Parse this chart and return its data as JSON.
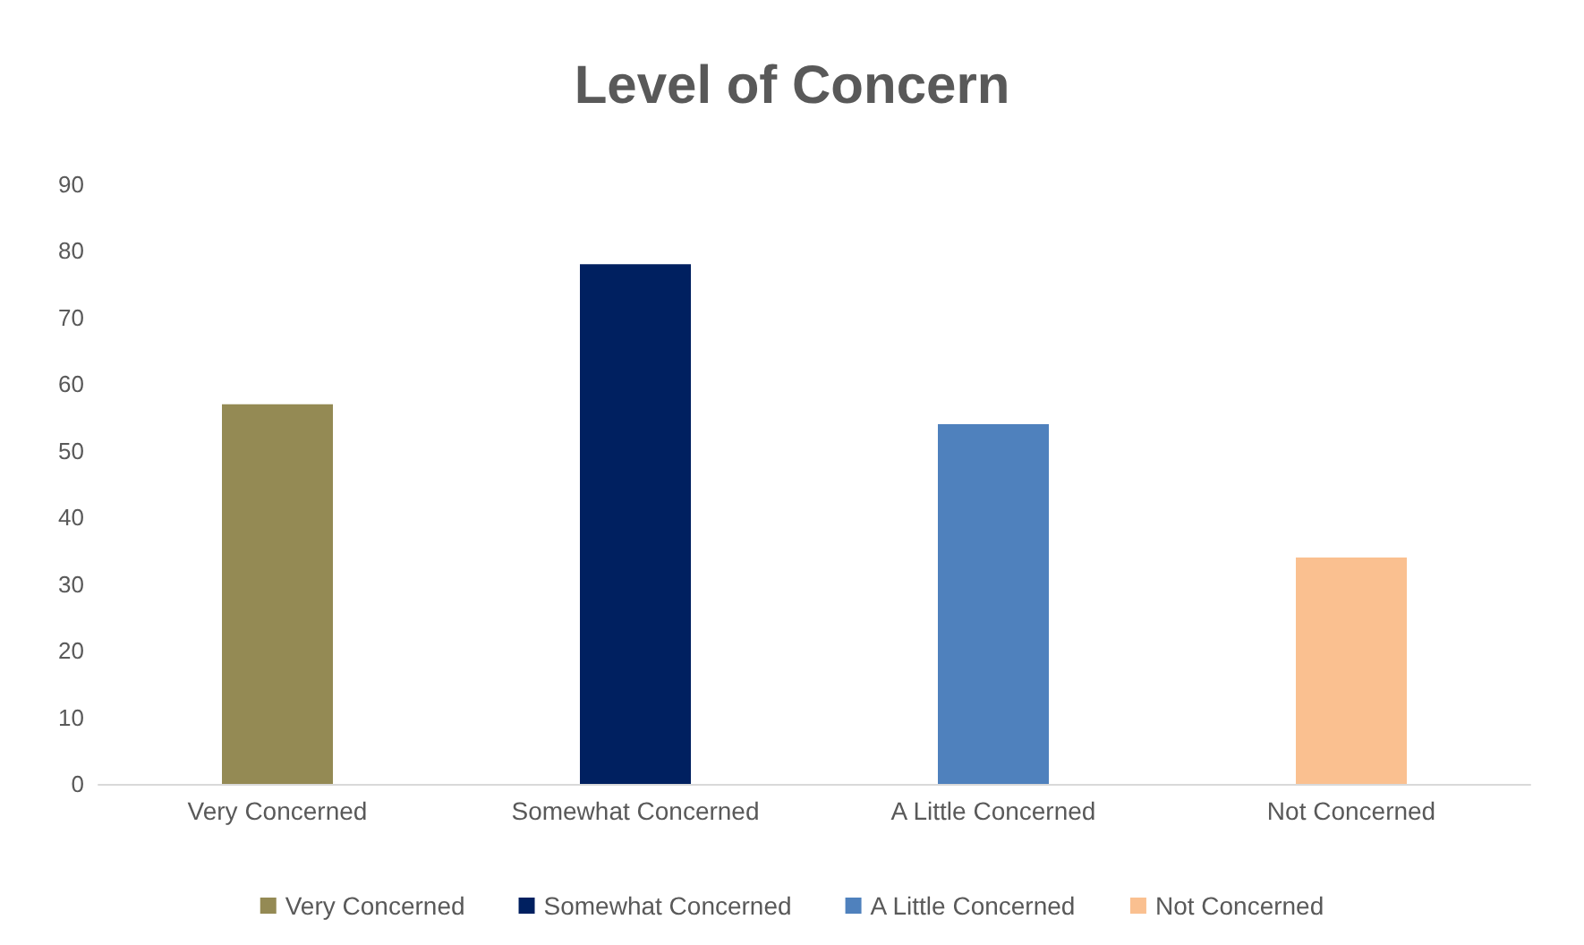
{
  "chart_data": {
    "type": "bar",
    "title": "Level of Concern",
    "categories": [
      "Very Concerned",
      "Somewhat Concerned",
      "A Little Concerned",
      "Not Concerned"
    ],
    "stacked": true,
    "series": [
      {
        "name": "Very Concerned",
        "color": "#948a54",
        "values": [
          57,
          null,
          null,
          null
        ]
      },
      {
        "name": "Somewhat Concerned",
        "color": "#002060",
        "values": [
          null,
          78,
          null,
          null
        ]
      },
      {
        "name": "A Little Concerned",
        "color": "#4f81bd",
        "values": [
          null,
          null,
          54,
          null
        ]
      },
      {
        "name": "Not Concerned",
        "color": "#fac090",
        "values": [
          null,
          null,
          null,
          34
        ]
      }
    ],
    "ylim": [
      0,
      90
    ],
    "yticks": [
      0,
      10,
      20,
      30,
      40,
      50,
      60,
      70,
      80,
      90
    ],
    "grid": false,
    "legend": "bottom"
  }
}
